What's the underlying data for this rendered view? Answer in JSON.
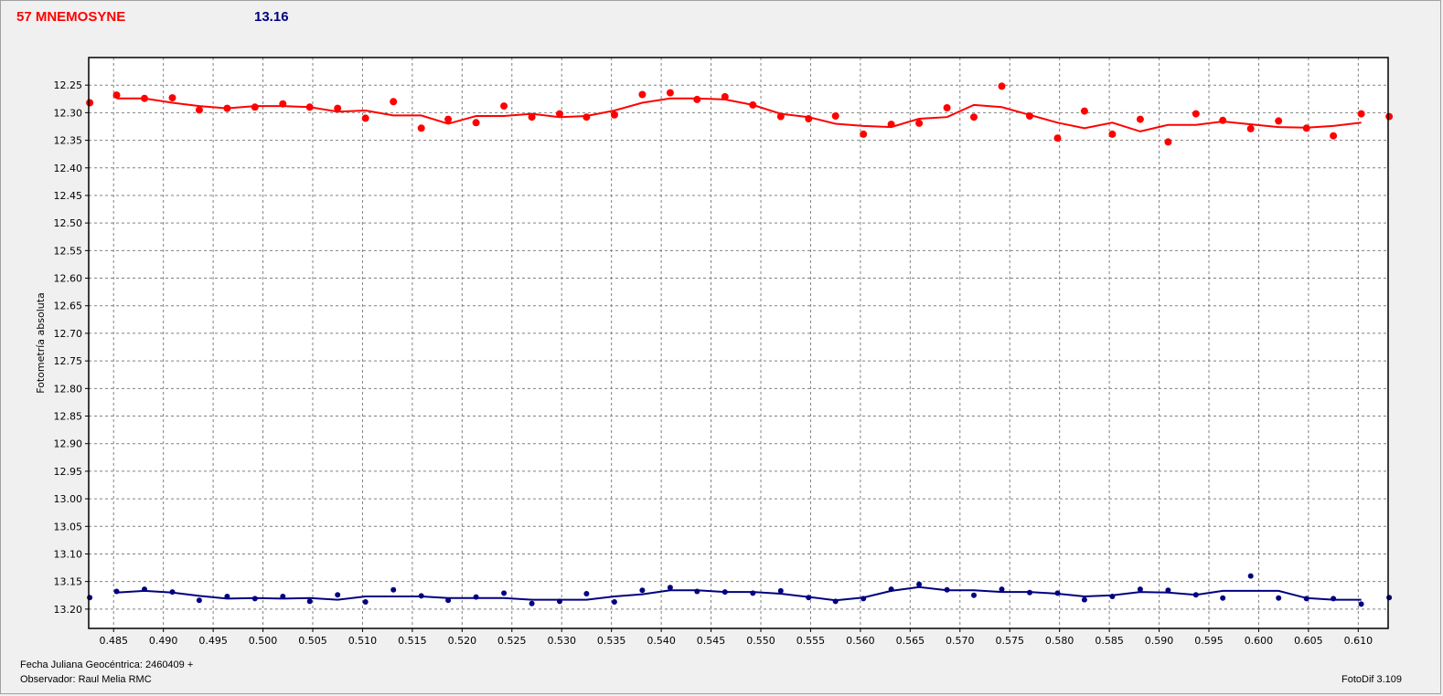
{
  "header": {
    "object_name": "57 MNEMOSYNE",
    "magnitude": "13.16"
  },
  "footer": {
    "julian_date": "Fecha Juliana Geocéntrica: 2460409 +",
    "observer": "Observador: Raul Melia RMC",
    "software": "FotoDif 3.109"
  },
  "colors": {
    "target": "#ff0000",
    "comparison": "#000080",
    "grid": "#808080",
    "plot_bg": "#ffffff"
  },
  "chart_data": {
    "type": "scatter",
    "title": "",
    "xlabel": "",
    "ylabel": "Fotometría absoluta",
    "xlim": [
      0.4825,
      0.613
    ],
    "ylim": [
      12.2,
      13.235
    ],
    "y_inverted": true,
    "grid": true,
    "x_ticks": [
      "0.485",
      "0.490",
      "0.495",
      "0.500",
      "0.505",
      "0.510",
      "0.515",
      "0.520",
      "0.525",
      "0.530",
      "0.535",
      "0.540",
      "0.545",
      "0.550",
      "0.555",
      "0.560",
      "0.565",
      "0.570",
      "0.575",
      "0.580",
      "0.585",
      "0.590",
      "0.595",
      "0.600",
      "0.605",
      "0.610"
    ],
    "y_ticks": [
      "12.25",
      "12.30",
      "12.35",
      "12.40",
      "12.45",
      "12.50",
      "12.55",
      "12.60",
      "12.65",
      "12.70",
      "12.75",
      "12.80",
      "12.85",
      "12.90",
      "12.95",
      "13.00",
      "13.05",
      "13.10",
      "13.15",
      "13.20"
    ],
    "series": [
      {
        "color": "#ff0000",
        "points": [
          [
            0.4826,
            12.282
          ],
          [
            0.4853,
            12.268
          ],
          [
            0.4881,
            12.274
          ],
          [
            0.4909,
            12.273
          ],
          [
            0.4936,
            12.295
          ],
          [
            0.4964,
            12.292
          ],
          [
            0.4992,
            12.29
          ],
          [
            0.502,
            12.284
          ],
          [
            0.5047,
            12.29
          ],
          [
            0.5075,
            12.292
          ],
          [
            0.5103,
            12.31
          ],
          [
            0.5131,
            12.28
          ],
          [
            0.5159,
            12.328
          ],
          [
            0.5186,
            12.312
          ],
          [
            0.5214,
            12.318
          ],
          [
            0.5242,
            12.288
          ],
          [
            0.527,
            12.308
          ],
          [
            0.5298,
            12.302
          ],
          [
            0.5325,
            12.308
          ],
          [
            0.5353,
            12.304
          ],
          [
            0.5381,
            12.267
          ],
          [
            0.5409,
            12.264
          ],
          [
            0.5436,
            12.276
          ],
          [
            0.5464,
            12.271
          ],
          [
            0.5492,
            12.286
          ],
          [
            0.552,
            12.307
          ],
          [
            0.5548,
            12.311
          ],
          [
            0.5575,
            12.306
          ],
          [
            0.5603,
            12.339
          ],
          [
            0.5631,
            12.321
          ],
          [
            0.5659,
            12.319
          ],
          [
            0.5687,
            12.291
          ],
          [
            0.5714,
            12.308
          ],
          [
            0.5742,
            12.252
          ],
          [
            0.577,
            12.306
          ],
          [
            0.5798,
            12.346
          ],
          [
            0.5825,
            12.297
          ],
          [
            0.5853,
            12.339
          ],
          [
            0.5881,
            12.312
          ],
          [
            0.5909,
            12.353
          ],
          [
            0.5937,
            12.302
          ],
          [
            0.5964,
            12.314
          ],
          [
            0.5992,
            12.329
          ],
          [
            0.602,
            12.315
          ],
          [
            0.6048,
            12.328
          ],
          [
            0.6075,
            12.342
          ],
          [
            0.6103,
            12.302
          ],
          [
            0.6131,
            12.307
          ]
        ],
        "fit": [
          [
            0.4853,
            12.274
          ],
          [
            0.4881,
            12.274
          ],
          [
            0.4909,
            12.282
          ],
          [
            0.4936,
            12.288
          ],
          [
            0.4964,
            12.292
          ],
          [
            0.4992,
            12.288
          ],
          [
            0.502,
            12.288
          ],
          [
            0.5047,
            12.29
          ],
          [
            0.5075,
            12.298
          ],
          [
            0.5103,
            12.296
          ],
          [
            0.5131,
            12.305
          ],
          [
            0.5159,
            12.305
          ],
          [
            0.5186,
            12.32
          ],
          [
            0.5214,
            12.306
          ],
          [
            0.5242,
            12.306
          ],
          [
            0.527,
            12.302
          ],
          [
            0.5298,
            12.308
          ],
          [
            0.5325,
            12.306
          ],
          [
            0.5353,
            12.296
          ],
          [
            0.5381,
            12.282
          ],
          [
            0.5409,
            12.274
          ],
          [
            0.5436,
            12.274
          ],
          [
            0.5464,
            12.276
          ],
          [
            0.5492,
            12.286
          ],
          [
            0.552,
            12.302
          ],
          [
            0.5548,
            12.308
          ],
          [
            0.5575,
            12.32
          ],
          [
            0.5603,
            12.324
          ],
          [
            0.5631,
            12.326
          ],
          [
            0.5659,
            12.311
          ],
          [
            0.5687,
            12.308
          ],
          [
            0.5714,
            12.286
          ],
          [
            0.5742,
            12.29
          ],
          [
            0.577,
            12.304
          ],
          [
            0.5798,
            12.318
          ],
          [
            0.5825,
            12.328
          ],
          [
            0.5853,
            12.318
          ],
          [
            0.5881,
            12.334
          ],
          [
            0.5909,
            12.322
          ],
          [
            0.5937,
            12.322
          ],
          [
            0.5964,
            12.316
          ],
          [
            0.5992,
            12.321
          ],
          [
            0.602,
            12.326
          ],
          [
            0.6048,
            12.327
          ],
          [
            0.6075,
            12.324
          ],
          [
            0.6103,
            12.318
          ]
        ]
      },
      {
        "color": "#000080",
        "points": [
          [
            0.4826,
            13.179
          ],
          [
            0.4853,
            13.168
          ],
          [
            0.4881,
            13.164
          ],
          [
            0.4909,
            13.169
          ],
          [
            0.4936,
            13.184
          ],
          [
            0.4964,
            13.177
          ],
          [
            0.4992,
            13.181
          ],
          [
            0.502,
            13.177
          ],
          [
            0.5047,
            13.186
          ],
          [
            0.5075,
            13.174
          ],
          [
            0.5103,
            13.187
          ],
          [
            0.5131,
            13.165
          ],
          [
            0.5159,
            13.176
          ],
          [
            0.5186,
            13.184
          ],
          [
            0.5214,
            13.178
          ],
          [
            0.5242,
            13.171
          ],
          [
            0.527,
            13.19
          ],
          [
            0.5298,
            13.186
          ],
          [
            0.5325,
            13.172
          ],
          [
            0.5353,
            13.187
          ],
          [
            0.5381,
            13.166
          ],
          [
            0.5409,
            13.161
          ],
          [
            0.5436,
            13.168
          ],
          [
            0.5464,
            13.169
          ],
          [
            0.5492,
            13.171
          ],
          [
            0.552,
            13.167
          ],
          [
            0.5548,
            13.179
          ],
          [
            0.5575,
            13.186
          ],
          [
            0.5603,
            13.181
          ],
          [
            0.5631,
            13.164
          ],
          [
            0.5659,
            13.155
          ],
          [
            0.5687,
            13.165
          ],
          [
            0.5714,
            13.175
          ],
          [
            0.5742,
            13.164
          ],
          [
            0.577,
            13.17
          ],
          [
            0.5798,
            13.171
          ],
          [
            0.5825,
            13.183
          ],
          [
            0.5853,
            13.177
          ],
          [
            0.5881,
            13.164
          ],
          [
            0.5909,
            13.166
          ],
          [
            0.5937,
            13.174
          ],
          [
            0.5964,
            13.18
          ],
          [
            0.5992,
            13.14
          ],
          [
            0.602,
            13.18
          ],
          [
            0.6048,
            13.181
          ],
          [
            0.6075,
            13.181
          ],
          [
            0.6103,
            13.191
          ],
          [
            0.6131,
            13.179
          ]
        ],
        "fit": [
          [
            0.4853,
            13.17
          ],
          [
            0.4881,
            13.167
          ],
          [
            0.4909,
            13.17
          ],
          [
            0.4936,
            13.176
          ],
          [
            0.4964,
            13.181
          ],
          [
            0.4992,
            13.18
          ],
          [
            0.502,
            13.181
          ],
          [
            0.5047,
            13.18
          ],
          [
            0.5075,
            13.183
          ],
          [
            0.5103,
            13.177
          ],
          [
            0.5131,
            13.177
          ],
          [
            0.5159,
            13.177
          ],
          [
            0.5186,
            13.18
          ],
          [
            0.5214,
            13.18
          ],
          [
            0.5242,
            13.18
          ],
          [
            0.527,
            13.183
          ],
          [
            0.5298,
            13.183
          ],
          [
            0.5325,
            13.183
          ],
          [
            0.5353,
            13.177
          ],
          [
            0.5381,
            13.173
          ],
          [
            0.5409,
            13.166
          ],
          [
            0.5436,
            13.166
          ],
          [
            0.5464,
            13.169
          ],
          [
            0.5492,
            13.169
          ],
          [
            0.552,
            13.172
          ],
          [
            0.5548,
            13.178
          ],
          [
            0.5575,
            13.184
          ],
          [
            0.5603,
            13.179
          ],
          [
            0.5631,
            13.167
          ],
          [
            0.5659,
            13.16
          ],
          [
            0.5687,
            13.166
          ],
          [
            0.5714,
            13.166
          ],
          [
            0.5742,
            13.169
          ],
          [
            0.577,
            13.169
          ],
          [
            0.5798,
            13.172
          ],
          [
            0.5825,
            13.177
          ],
          [
            0.5853,
            13.175
          ],
          [
            0.5881,
            13.169
          ],
          [
            0.5909,
            13.17
          ],
          [
            0.5937,
            13.174
          ],
          [
            0.5964,
            13.167
          ],
          [
            0.5992,
            13.167
          ],
          [
            0.602,
            13.167
          ],
          [
            0.6048,
            13.18
          ],
          [
            0.6075,
            13.183
          ],
          [
            0.6103,
            13.183
          ]
        ]
      }
    ]
  }
}
